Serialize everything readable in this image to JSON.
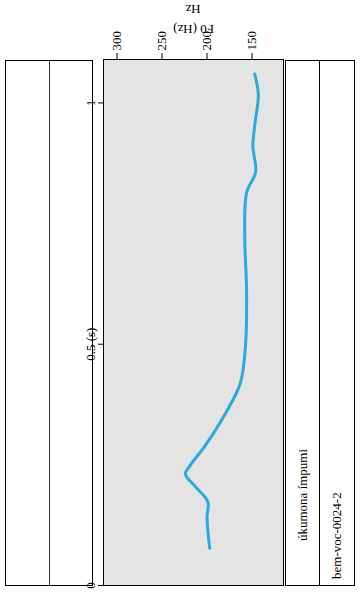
{
  "chart_data": {
    "type": "line",
    "ylabel": "F0 (Hz)",
    "annotations": [
      "Hz"
    ],
    "x": [
      0.077,
      0.141,
      0.173,
      0.205,
      0.231,
      0.248,
      0.29,
      0.355,
      0.419,
      0.504,
      0.611,
      0.718,
      0.814,
      0.857,
      0.91,
      0.953,
      1.017,
      1.06
    ],
    "values": [
      197,
      200,
      199,
      213,
      224,
      219,
      202,
      180,
      163,
      157,
      156,
      158,
      156,
      146,
      149,
      147,
      143,
      147
    ],
    "color": "#29a9e0",
    "xlim": [
      0,
      1.09
    ],
    "xticks": [
      0,
      {
        "value": 0.5,
        "label": "0.5 (s)"
      },
      1
    ],
    "ylim": [
      115,
      315
    ],
    "yticks": [
      150,
      200,
      250,
      300
    ],
    "tiers": [
      "úkumona ímpumi",
      "bem-voc-0024-2"
    ]
  }
}
